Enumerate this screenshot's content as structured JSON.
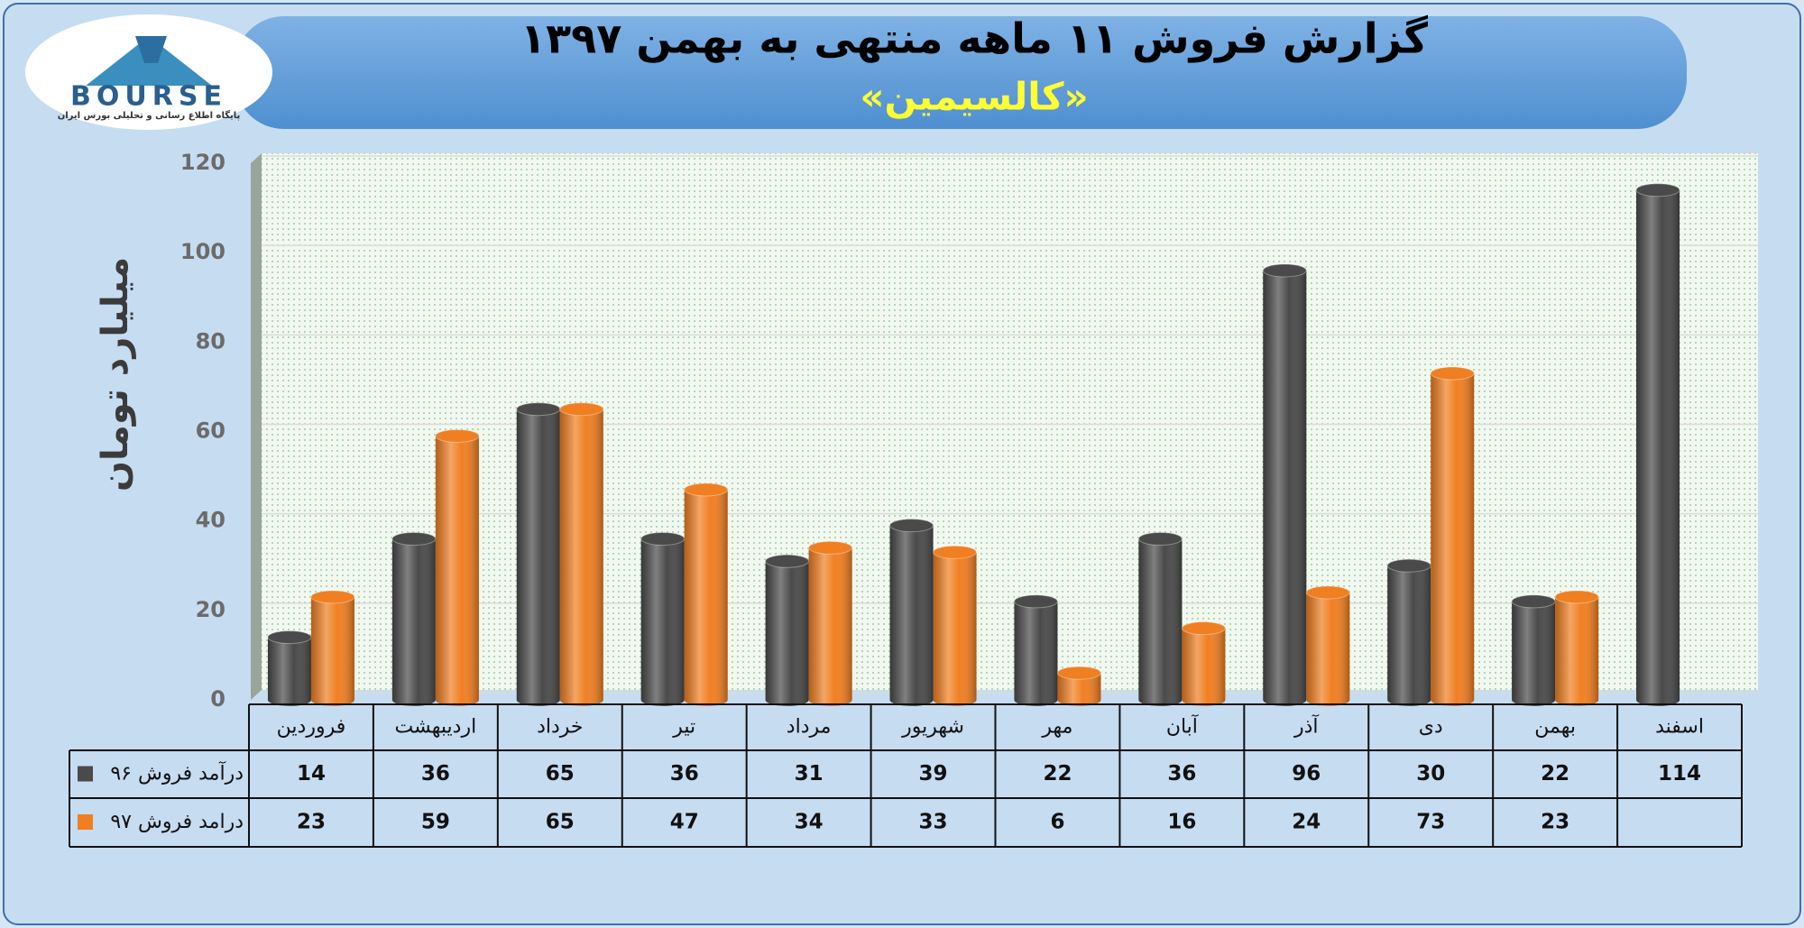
{
  "logo": {
    "name": "BOURSE",
    "tagline": "پایگاه اطلاع رسانی و تحلیلی بورس ایران"
  },
  "chart_data": {
    "type": "bar",
    "title": "گزارش فروش ۱۱ ماهه منتهی به بهمن ۱۳۹۷",
    "subtitle": "«کالسیمین»",
    "y_label": "میلیارد تومان",
    "categories": [
      "فروردین",
      "اردیبهشت",
      "خرداد",
      "تیر",
      "مرداد",
      "شهریور",
      "مهر",
      "آبان",
      "آذر",
      "دی",
      "بهمن",
      "اسفند"
    ],
    "series": [
      {
        "name": "درآمد فروش ۹۶",
        "color": "#4a4a4a",
        "values": [
          14,
          36,
          65,
          36,
          31,
          39,
          22,
          36,
          96,
          30,
          22,
          114
        ]
      },
      {
        "name": "درامد فروش ۹۷",
        "color": "#f07f22",
        "values": [
          23,
          59,
          65,
          47,
          34,
          33,
          6,
          16,
          24,
          73,
          23,
          null
        ]
      }
    ],
    "ylim": [
      0,
      120
    ],
    "yticks": [
      0,
      20,
      40,
      60,
      80,
      100,
      120
    ],
    "grid": true
  }
}
